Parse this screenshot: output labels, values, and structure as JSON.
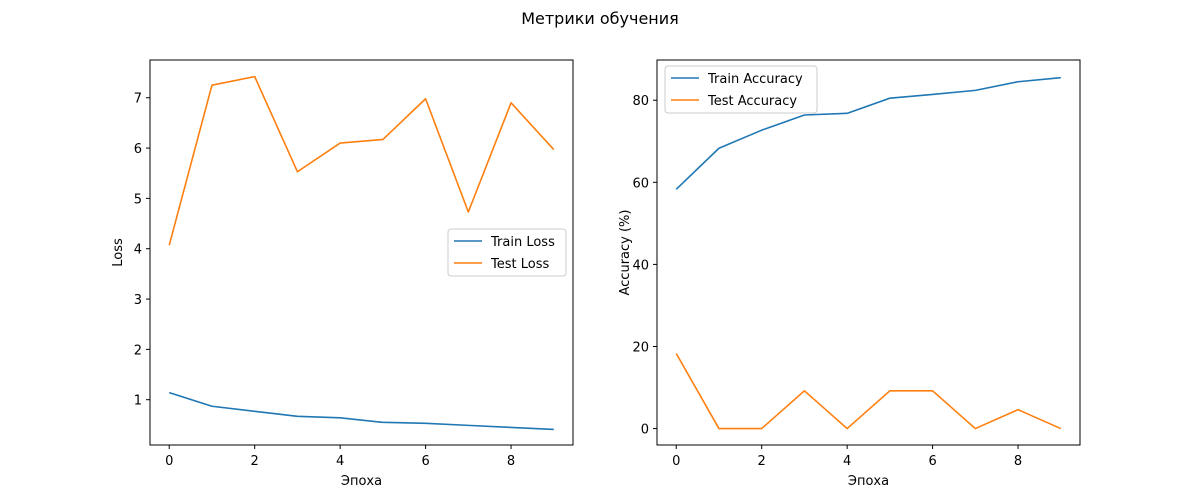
{
  "figure": {
    "suptitle": "Метрики обучения"
  },
  "colors": {
    "series1": "#1f77b4",
    "series2": "#ff7f0e",
    "axes": "#000000",
    "legend_border": "#cccccc"
  },
  "chart_data": [
    {
      "type": "line",
      "title": "",
      "xlabel": "Эпоха",
      "ylabel": "Loss",
      "x": [
        0,
        1,
        2,
        3,
        4,
        5,
        6,
        7,
        8,
        9
      ],
      "xlim": [
        -0.45,
        9.45
      ],
      "ylim": [
        0.1,
        7.75
      ],
      "xticks": [
        0,
        2,
        4,
        6,
        8
      ],
      "yticks": [
        1,
        2,
        3,
        4,
        5,
        6,
        7
      ],
      "grid": false,
      "legend_placement": "center-right",
      "series": [
        {
          "name": "Train Loss",
          "color": "#1f77b4",
          "values": [
            1.14,
            0.87,
            0.77,
            0.67,
            0.64,
            0.55,
            0.53,
            0.49,
            0.45,
            0.41
          ]
        },
        {
          "name": "Test Loss",
          "color": "#ff7f0e",
          "values": [
            4.07,
            7.25,
            7.42,
            5.53,
            6.1,
            6.17,
            6.98,
            4.73,
            6.9,
            5.97
          ]
        }
      ]
    },
    {
      "type": "line",
      "title": "",
      "xlabel": "Эпоха",
      "ylabel": "Accuracy (%)",
      "x": [
        0,
        1,
        2,
        3,
        4,
        5,
        6,
        7,
        8,
        9
      ],
      "xlim": [
        -0.45,
        9.45
      ],
      "ylim": [
        -4.0,
        89.8
      ],
      "xticks": [
        0,
        2,
        4,
        6,
        8
      ],
      "yticks": [
        0,
        20,
        40,
        60,
        80
      ],
      "grid": false,
      "legend_placement": "upper-left",
      "series": [
        {
          "name": "Train Accuracy",
          "color": "#1f77b4",
          "values": [
            58.3,
            68.3,
            72.7,
            76.4,
            76.8,
            80.5,
            81.4,
            82.4,
            84.5,
            85.5
          ]
        },
        {
          "name": "Test Accuracy",
          "color": "#ff7f0e",
          "values": [
            18.3,
            0.0,
            0.0,
            9.2,
            0.0,
            9.2,
            9.2,
            0.0,
            4.6,
            0.0
          ]
        }
      ]
    }
  ]
}
